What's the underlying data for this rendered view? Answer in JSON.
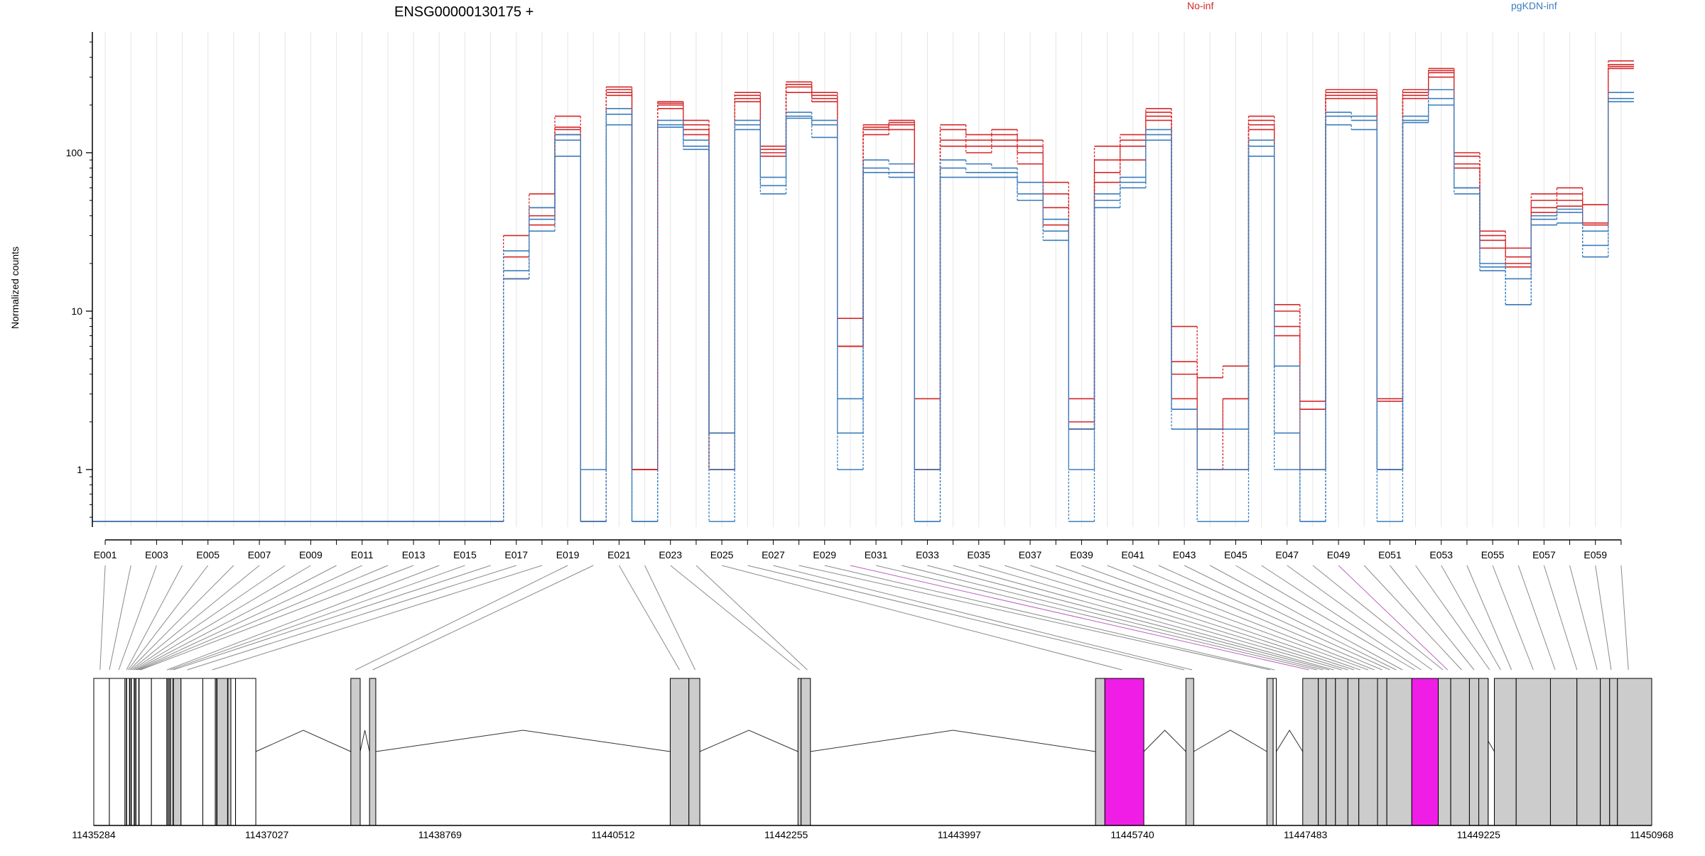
{
  "colors": {
    "no_inf": "#d62728",
    "pgkdn_inf": "#3b7dbd",
    "highlight": "#f01de6",
    "exon_fill": "#cccccc",
    "axis": "#000000"
  },
  "chart_data": {
    "type": "line",
    "title": "ENSG00000130175 +",
    "ylabel": "Normalized counts",
    "yscale": "log",
    "ylim": [
      0.47,
      500
    ],
    "yticks": [
      1,
      10,
      100
    ],
    "ytick_labels": [
      "1",
      "10",
      "100"
    ],
    "legend": [
      {
        "name": "No-inf",
        "color": "#d62728"
      },
      {
        "name": "pgKDN-inf",
        "color": "#3b7dbd"
      }
    ],
    "legend_placement": "top",
    "exons": [
      "E001",
      "E002",
      "E003",
      "E004",
      "E005",
      "E006",
      "E007",
      "E008",
      "E009",
      "E010",
      "E011",
      "E012",
      "E013",
      "E014",
      "E015",
      "E016",
      "E017",
      "E018",
      "E019",
      "E020",
      "E021",
      "E022",
      "E023",
      "E024",
      "E025",
      "E026",
      "E027",
      "E028",
      "E029",
      "E030",
      "E031",
      "E032",
      "E033",
      "E034",
      "E035",
      "E036",
      "E037",
      "E038",
      "E039",
      "E040",
      "E041",
      "E042",
      "E043",
      "E044",
      "E045",
      "E046",
      "E047",
      "E048",
      "E049",
      "E050",
      "E051",
      "E052",
      "E053",
      "E054",
      "E055",
      "E056",
      "E057",
      "E058",
      "E059",
      "E060"
    ],
    "xtick_labels": [
      "E001",
      "E003",
      "E005",
      "E007",
      "E009",
      "E011",
      "E013",
      "E015",
      "E017",
      "E019",
      "E021",
      "E023",
      "E025",
      "E027",
      "E029",
      "E031",
      "E033",
      "E035",
      "E037",
      "E039",
      "E041",
      "E043",
      "E045",
      "E047",
      "E049",
      "E051",
      "E053",
      "E055",
      "E057",
      "E059"
    ],
    "series": [
      {
        "group": "No-inf",
        "values": [
          0.47,
          0.47,
          0.47,
          0.47,
          0.47,
          0.47,
          0.47,
          0.47,
          0.47,
          0.47,
          0.47,
          0.47,
          0.47,
          0.47,
          0.47,
          0.47,
          16,
          40,
          140,
          0.47,
          260,
          1,
          210,
          160,
          1,
          240,
          110,
          280,
          240,
          6,
          150,
          160,
          1,
          140,
          130,
          140,
          110,
          55,
          2,
          90,
          130,
          180,
          4.8,
          1,
          2.8,
          170,
          10,
          2.7,
          250,
          250,
          2.7,
          250,
          340,
          100,
          32,
          25,
          55,
          60,
          47,
          380
        ]
      },
      {
        "group": "No-inf",
        "values": [
          0.47,
          0.47,
          0.47,
          0.47,
          0.47,
          0.47,
          0.47,
          0.47,
          0.47,
          0.47,
          0.47,
          0.47,
          0.47,
          0.47,
          0.47,
          0.47,
          30,
          55,
          170,
          0.47,
          240,
          1,
          200,
          140,
          1.7,
          220,
          100,
          260,
          220,
          9,
          140,
          150,
          2.8,
          150,
          120,
          130,
          120,
          65,
          2.8,
          110,
          120,
          190,
          8,
          3.8,
          4.5,
          160,
          11,
          2.4,
          240,
          240,
          2.8,
          240,
          330,
          95,
          30,
          22,
          50,
          55,
          47,
          360
        ]
      },
      {
        "group": "No-inf",
        "values": [
          0.47,
          0.47,
          0.47,
          0.47,
          0.47,
          0.47,
          0.47,
          0.47,
          0.47,
          0.47,
          0.47,
          0.47,
          0.47,
          0.47,
          0.47,
          0.47,
          22,
          45,
          145,
          0.47,
          250,
          1,
          205,
          150,
          1,
          230,
          105,
          270,
          230,
          6,
          145,
          155,
          1,
          120,
          110,
          120,
          100,
          45,
          1.8,
          75,
          110,
          170,
          4,
          1.8,
          2.8,
          150,
          8,
          2.4,
          230,
          230,
          1,
          230,
          320,
          85,
          28,
          20,
          45,
          50,
          36,
          350
        ]
      },
      {
        "group": "No-inf",
        "values": [
          0.47,
          0.47,
          0.47,
          0.47,
          0.47,
          0.47,
          0.47,
          0.47,
          0.47,
          0.47,
          0.47,
          0.47,
          0.47,
          0.47,
          0.47,
          0.47,
          16,
          35,
          130,
          0.47,
          230,
          1,
          190,
          130,
          1,
          210,
          95,
          240,
          210,
          6,
          130,
          140,
          1,
          110,
          100,
          110,
          85,
          35,
          1.8,
          65,
          90,
          160,
          2.8,
          1,
          1,
          140,
          7,
          1,
          220,
          220,
          1,
          220,
          300,
          80,
          25,
          19,
          42,
          46,
          35,
          340
        ]
      },
      {
        "group": "pgKDN-inf",
        "values": [
          0.47,
          0.47,
          0.47,
          0.47,
          0.47,
          0.47,
          0.47,
          0.47,
          0.47,
          0.47,
          0.47,
          0.47,
          0.47,
          0.47,
          0.47,
          0.47,
          24,
          45,
          130,
          1,
          190,
          0.47,
          160,
          120,
          1.7,
          160,
          70,
          180,
          160,
          2.8,
          90,
          85,
          1,
          90,
          85,
          80,
          65,
          38,
          1.8,
          55,
          70,
          140,
          2.4,
          1.8,
          1.8,
          120,
          4.5,
          1,
          180,
          170,
          1,
          170,
          250,
          60,
          20,
          16,
          40,
          44,
          32,
          240
        ]
      },
      {
        "group": "pgKDN-inf",
        "values": [
          0.47,
          0.47,
          0.47,
          0.47,
          0.47,
          0.47,
          0.47,
          0.47,
          0.47,
          0.47,
          0.47,
          0.47,
          0.47,
          0.47,
          0.47,
          0.47,
          18,
          38,
          120,
          0.47,
          175,
          0.47,
          150,
          110,
          1,
          150,
          62,
          170,
          150,
          1.7,
          80,
          75,
          0.47,
          80,
          75,
          75,
          55,
          32,
          1,
          50,
          65,
          130,
          2.4,
          1,
          1,
          110,
          1.7,
          0.47,
          170,
          160,
          1,
          160,
          220,
          60,
          19,
          11,
          38,
          42,
          26,
          220
        ]
      },
      {
        "group": "pgKDN-inf",
        "values": [
          0.47,
          0.47,
          0.47,
          0.47,
          0.47,
          0.47,
          0.47,
          0.47,
          0.47,
          0.47,
          0.47,
          0.47,
          0.47,
          0.47,
          0.47,
          0.47,
          16,
          32,
          95,
          0.47,
          150,
          0.47,
          145,
          105,
          0.47,
          140,
          55,
          165,
          125,
          1,
          75,
          70,
          0.47,
          70,
          70,
          70,
          50,
          28,
          0.47,
          45,
          60,
          120,
          1.8,
          0.47,
          0.47,
          95,
          1,
          0.47,
          150,
          140,
          0.47,
          155,
          200,
          55,
          18,
          11,
          35,
          36,
          22,
          210
        ]
      }
    ],
    "genomic_axis_labels": [
      "11435284",
      "11437027",
      "11438769",
      "11440512",
      "11442255",
      "11443997",
      "11445740",
      "11447483",
      "11449225",
      "11450968"
    ]
  }
}
